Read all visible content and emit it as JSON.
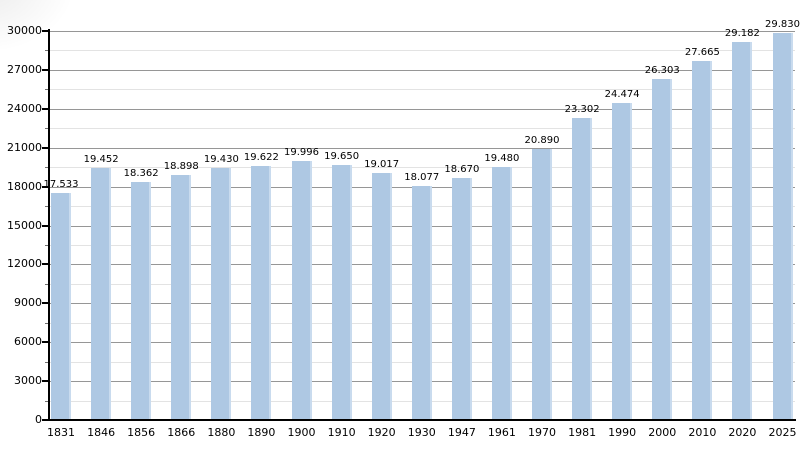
{
  "chart_data": {
    "type": "bar",
    "title": "",
    "xlabel": "",
    "ylabel": "",
    "categories": [
      "1831",
      "1846",
      "1856",
      "1866",
      "1880",
      "1890",
      "1900",
      "1910",
      "1920",
      "1930",
      "1947",
      "1961",
      "1970",
      "1981",
      "1990",
      "2000",
      "2010",
      "2020",
      "2025"
    ],
    "values": [
      17533,
      19452,
      18362,
      18898,
      19430,
      19622,
      19996,
      19650,
      19017,
      18077,
      18670,
      19480,
      20890,
      23302,
      24474,
      26303,
      27665,
      29182,
      29830
    ],
    "value_labels": [
      "17.533",
      "19.452",
      "18.362",
      "18.898",
      "19.430",
      "19.622",
      "19.996",
      "19.650",
      "19.017",
      "18.077",
      "18.670",
      "19.480",
      "20.890",
      "23.302",
      "24.474",
      "26.303",
      "27.665",
      "29.182",
      "29.830"
    ],
    "ylim": [
      0,
      30000
    ],
    "y_major_step": 3000,
    "y_minor_step": 1500,
    "y_tick_labels": [
      "0",
      "3000",
      "6000",
      "9000",
      "12000",
      "15000",
      "18000",
      "21000",
      "24000",
      "27000",
      "30000"
    ],
    "grid": "on",
    "legend": "none",
    "colors": {
      "bar_fill": "#aec8e3",
      "bar_edge": "#c9dbee",
      "grid_major": "#969696",
      "grid_minor": "#e3e3e3",
      "axis": "#000000",
      "text": "#000000",
      "background": "#ffffff"
    }
  }
}
